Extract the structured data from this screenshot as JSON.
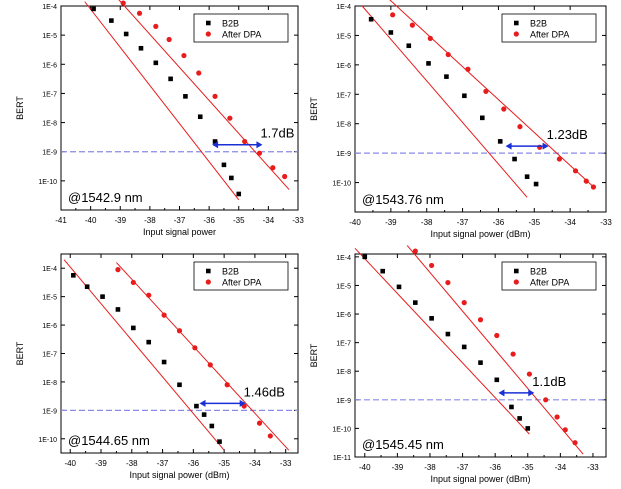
{
  "chart_data": [
    {
      "type": "scatter",
      "annotation": "@1542.9 nm",
      "xlabel": "Input signal power",
      "ylabel": "BERT",
      "xlim": [
        -41,
        -33
      ],
      "ylim_log10": [
        -11,
        -4
      ],
      "x_ticks": [
        "-41",
        "-40",
        "-39",
        "-38",
        "-37",
        "-36",
        "-35",
        "-34",
        "-33"
      ],
      "y_ticks": [
        "1E-4",
        "1E-5",
        "1E-6",
        "1E-7",
        "1E-8",
        "1E-9",
        "1E-10"
      ],
      "y_ticks_log10": [
        -4,
        -5,
        -6,
        -7,
        -8,
        -9,
        -10
      ],
      "threshold_log10": -9,
      "penalty_label": "1.7dB",
      "penalty_x": [
        -35.9,
        -34.2
      ],
      "legend_position": "top-right",
      "series": [
        {
          "name": "B2B",
          "color": "#000000",
          "marker": "square",
          "points": [
            [
              -39.9,
              -4.1
            ],
            [
              -39.3,
              -4.5
            ],
            [
              -38.8,
              -4.96
            ],
            [
              -38.3,
              -5.45
            ],
            [
              -37.8,
              -5.95
            ],
            [
              -37.3,
              -6.5
            ],
            [
              -36.8,
              -7.1
            ],
            [
              -36.3,
              -7.8
            ],
            [
              -35.8,
              -8.65
            ],
            [
              -35.5,
              -9.45
            ],
            [
              -35.25,
              -9.9
            ],
            [
              -35.0,
              -10.45
            ]
          ],
          "fit": [
            [
              -40.2,
              -3.85
            ],
            [
              -35.0,
              -10.65
            ]
          ]
        },
        {
          "name": "After DPA",
          "color": "#e81c1c",
          "marker": "circle",
          "points": [
            [
              -38.9,
              -3.9
            ],
            [
              -38.35,
              -4.25
            ],
            [
              -37.8,
              -4.7
            ],
            [
              -37.35,
              -5.15
            ],
            [
              -36.85,
              -5.7
            ],
            [
              -36.35,
              -6.3
            ],
            [
              -35.8,
              -7.1
            ],
            [
              -35.3,
              -7.85
            ],
            [
              -34.8,
              -8.65
            ],
            [
              -34.3,
              -9.05
            ],
            [
              -33.85,
              -9.55
            ],
            [
              -33.45,
              -9.85
            ]
          ],
          "fit": [
            [
              -39.3,
              -3.5
            ],
            [
              -33.3,
              -10.3
            ]
          ]
        }
      ]
    },
    {
      "type": "scatter",
      "annotation": "@1543.76 nm",
      "xlabel": "Input signal power (dBm)",
      "ylabel": "BERT",
      "xlim": [
        -40,
        -33
      ],
      "ylim_log10": [
        -11,
        -4
      ],
      "x_ticks": [
        "-40",
        "-39",
        "-38",
        "-37",
        "-36",
        "-35",
        "-34",
        "-33"
      ],
      "y_ticks": [
        "1E-4",
        "1E-5",
        "1E-6",
        "1E-7",
        "1E-8",
        "1E-9",
        "1E-10"
      ],
      "y_ticks_log10": [
        -4,
        -5,
        -6,
        -7,
        -8,
        -9,
        -10
      ],
      "threshold_log10": -9,
      "penalty_label": "1.23dB",
      "penalty_x": [
        -35.8,
        -34.6
      ],
      "legend_position": "top-right",
      "series": [
        {
          "name": "B2B",
          "color": "#000000",
          "marker": "square",
          "points": [
            [
              -39.55,
              -4.45
            ],
            [
              -39.0,
              -4.9
            ],
            [
              -38.5,
              -5.35
            ],
            [
              -37.95,
              -5.95
            ],
            [
              -37.45,
              -6.4
            ],
            [
              -36.95,
              -7.05
            ],
            [
              -36.45,
              -7.8
            ],
            [
              -35.95,
              -8.6
            ],
            [
              -35.55,
              -9.2
            ],
            [
              -35.2,
              -9.8
            ],
            [
              -34.95,
              -10.05
            ]
          ],
          "fit": [
            [
              -39.8,
              -4.0
            ],
            [
              -35.2,
              -10.5
            ]
          ]
        },
        {
          "name": "After DPA",
          "color": "#e81c1c",
          "marker": "circle",
          "points": [
            [
              -38.95,
              -4.3
            ],
            [
              -38.4,
              -4.65
            ],
            [
              -37.9,
              -5.1
            ],
            [
              -37.4,
              -5.65
            ],
            [
              -36.85,
              -6.15
            ],
            [
              -36.35,
              -6.9
            ],
            [
              -35.85,
              -7.5
            ],
            [
              -35.4,
              -8.1
            ],
            [
              -34.85,
              -8.8
            ],
            [
              -34.3,
              -9.2
            ],
            [
              -33.85,
              -9.6
            ],
            [
              -33.55,
              -9.95
            ],
            [
              -33.35,
              -10.15
            ]
          ],
          "fit": [
            [
              -39.2,
              -3.6
            ],
            [
              -33.3,
              -10.2
            ]
          ]
        }
      ]
    },
    {
      "type": "scatter",
      "annotation": "@1544.65 nm",
      "xlabel": "Input signal power (dBm)",
      "ylabel": "BERT",
      "xlim": [
        -40.3,
        -32.6
      ],
      "ylim_log10": [
        -10.5,
        -3.5
      ],
      "x_ticks": [
        "-40",
        "-39",
        "-38",
        "-37",
        "-36",
        "-35",
        "-34",
        "-33"
      ],
      "y_ticks": [
        "1E-4",
        "1E-5",
        "1E-6",
        "1E-7",
        "1E-8",
        "1E-9",
        "1E-10"
      ],
      "y_ticks_log10": [
        -4,
        -5,
        -6,
        -7,
        -8,
        -9,
        -10
      ],
      "threshold_log10": -9,
      "penalty_label": "1.46dB",
      "penalty_x": [
        -35.8,
        -34.3
      ],
      "legend_position": "top-right",
      "series": [
        {
          "name": "B2B",
          "color": "#000000",
          "marker": "square",
          "points": [
            [
              -39.9,
              -4.25
            ],
            [
              -39.45,
              -4.65
            ],
            [
              -38.95,
              -5.0
            ],
            [
              -38.45,
              -5.45
            ],
            [
              -37.95,
              -6.1
            ],
            [
              -37.45,
              -6.6
            ],
            [
              -36.95,
              -7.3
            ],
            [
              -36.45,
              -8.1
            ],
            [
              -35.9,
              -8.85
            ],
            [
              -35.65,
              -9.15
            ],
            [
              -35.4,
              -9.55
            ],
            [
              -35.15,
              -10.1
            ]
          ],
          "fit": [
            [
              -40.2,
              -3.7
            ],
            [
              -35.0,
              -10.4
            ]
          ]
        },
        {
          "name": "After DPA",
          "color": "#e81c1c",
          "marker": "circle",
          "points": [
            [
              -38.45,
              -4.05
            ],
            [
              -37.95,
              -4.5
            ],
            [
              -37.45,
              -4.95
            ],
            [
              -36.95,
              -5.65
            ],
            [
              -36.45,
              -6.2
            ],
            [
              -35.95,
              -6.8
            ],
            [
              -35.45,
              -7.4
            ],
            [
              -34.9,
              -8.1
            ],
            [
              -34.35,
              -8.85
            ],
            [
              -33.85,
              -9.45
            ],
            [
              -33.5,
              -9.9
            ]
          ],
          "fit": [
            [
              -38.5,
              -3.8
            ],
            [
              -32.9,
              -10.4
            ]
          ]
        }
      ]
    },
    {
      "type": "scatter",
      "annotation": "@1545.45 nm",
      "xlabel": "Input signal power (dBm)",
      "ylabel": "BERT",
      "xlim": [
        -40.3,
        -32.6
      ],
      "ylim_log10": [
        -11,
        -3.9
      ],
      "x_ticks": [
        "-40",
        "-39",
        "-38",
        "-37",
        "-36",
        "-35",
        "-34",
        "-33"
      ],
      "y_ticks": [
        "1E-4",
        "1E-5",
        "1E-6",
        "1E-7",
        "1E-8",
        "1E-9",
        "1E-10",
        "1E-11"
      ],
      "y_ticks_log10": [
        -4,
        -5,
        -6,
        -7,
        -8,
        -9,
        -10,
        -11
      ],
      "threshold_log10": -9,
      "penalty_label": "1.1dB",
      "penalty_x": [
        -35.9,
        -34.8
      ],
      "legend_position": "top-right",
      "series": [
        {
          "name": "B2B",
          "color": "#000000",
          "marker": "square",
          "points": [
            [
              -40.0,
              -4.0
            ],
            [
              -39.45,
              -4.5
            ],
            [
              -38.95,
              -5.05
            ],
            [
              -38.45,
              -5.6
            ],
            [
              -37.95,
              -6.15
            ],
            [
              -37.45,
              -6.7
            ],
            [
              -36.95,
              -7.15
            ],
            [
              -36.45,
              -7.7
            ],
            [
              -35.95,
              -8.3
            ],
            [
              -35.5,
              -9.25
            ],
            [
              -35.25,
              -9.65
            ],
            [
              -35.0,
              -10.0
            ]
          ],
          "fit": [
            [
              -40.3,
              -3.7
            ],
            [
              -34.95,
              -10.2
            ]
          ]
        },
        {
          "name": "After DPA",
          "color": "#e81c1c",
          "marker": "circle",
          "points": [
            [
              -38.45,
              -3.8
            ],
            [
              -37.95,
              -4.3
            ],
            [
              -37.45,
              -4.9
            ],
            [
              -36.95,
              -5.6
            ],
            [
              -36.45,
              -6.2
            ],
            [
              -35.95,
              -6.75
            ],
            [
              -35.45,
              -7.4
            ],
            [
              -34.95,
              -8.1
            ],
            [
              -34.45,
              -9.0
            ],
            [
              -34.1,
              -9.6
            ],
            [
              -33.85,
              -10.05
            ],
            [
              -33.55,
              -10.5
            ]
          ],
          "fit": [
            [
              -38.7,
              -3.6
            ],
            [
              -33.3,
              -10.9
            ]
          ]
        }
      ]
    }
  ]
}
